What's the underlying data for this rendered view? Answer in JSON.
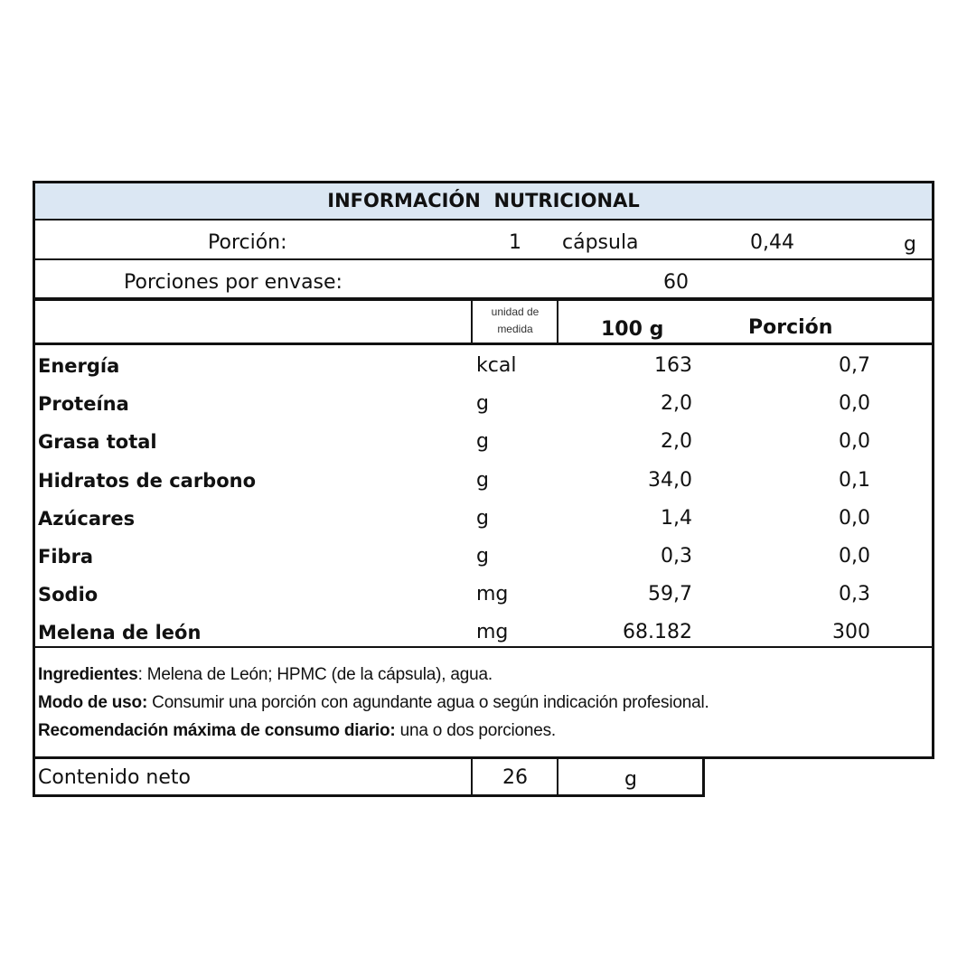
{
  "title": "INFORMACIÓN  NUTRICIONAL",
  "colors": {
    "title_bg": "#dbe7f3",
    "border": "#111111"
  },
  "portion": {
    "label": "Porción:",
    "qty": "1",
    "unit_name": "cápsula",
    "weight": "0,44",
    "weight_unit": "g"
  },
  "servings": {
    "label": "Porciones por envase:",
    "value": "60"
  },
  "header": {
    "unit_col": "unidad de medida",
    "col_100g": "100 g",
    "col_portion": "Porción"
  },
  "rows": [
    {
      "name": "Energía",
      "unit": "kcal",
      "per100": "163",
      "portion": "0,7"
    },
    {
      "name": "Proteína",
      "unit": "g",
      "per100": "2,0",
      "portion": "0,0"
    },
    {
      "name": "Grasa total",
      "unit": "g",
      "per100": "2,0",
      "portion": "0,0"
    },
    {
      "name": "Hidratos de carbono",
      "unit": "g",
      "per100": "34,0",
      "portion": "0,1"
    },
    {
      "name": "Azúcares",
      "unit": "g",
      "per100": "1,4",
      "portion": "0,0"
    },
    {
      "name": "Fibra",
      "unit": "g",
      "per100": "0,3",
      "portion": "0,0"
    },
    {
      "name": "Sodio",
      "unit": "mg",
      "per100": "59,7",
      "portion": "0,3"
    },
    {
      "name": "Melena de león",
      "unit": "mg",
      "per100": "68.182",
      "portion": "300"
    }
  ],
  "notes": {
    "ingredients_label": "Ingredientes",
    "ingredients_text": ": Melena de León; HPMC (de la cápsula), agua.",
    "usage_label": "Modo de uso:",
    "usage_text": " Consumir una porción con agundante agua o según indicación profesional.",
    "max_label": "Recomendación máxima de consumo diario:",
    "max_text": " una o dos porciones."
  },
  "net": {
    "label": "Contenido neto",
    "value": "26",
    "unit": "g"
  }
}
